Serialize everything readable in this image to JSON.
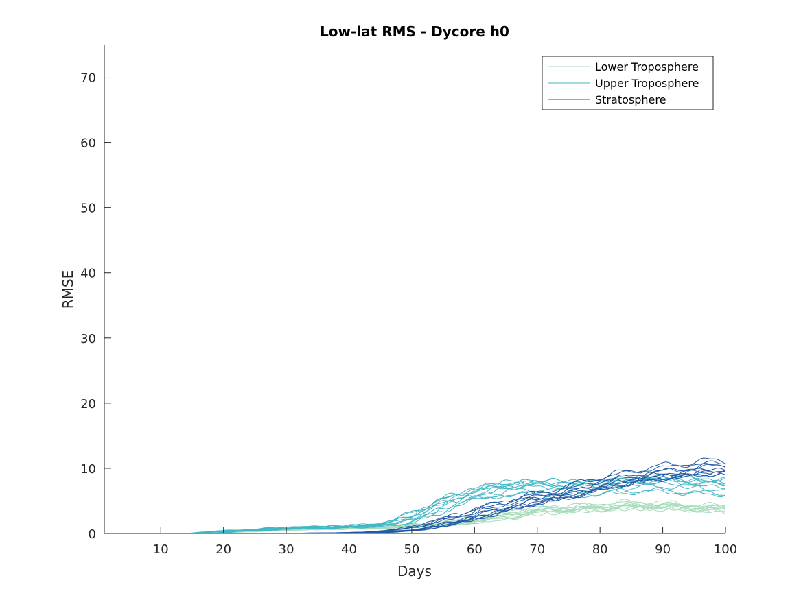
{
  "chart_data": {
    "type": "line",
    "title": "Low-lat RMS - Dycore h0",
    "xlabel": "Days",
    "ylabel": "RMSE",
    "xlim": [
      1,
      100
    ],
    "ylim": [
      0,
      75
    ],
    "xticks": [
      10,
      20,
      30,
      40,
      50,
      60,
      70,
      80,
      90,
      100
    ],
    "yticks": [
      0,
      10,
      20,
      30,
      40,
      50,
      60,
      70
    ],
    "grid": false,
    "legend_position": "top-right",
    "series": [
      {
        "name": "Lower Troposphere",
        "color": "#a6dbbb",
        "ensemble_members": 10,
        "x": [
          1,
          10,
          17,
          20,
          25,
          30,
          35,
          40,
          45,
          50,
          55,
          60,
          65,
          70,
          75,
          80,
          85,
          90,
          95,
          100
        ],
        "values": [
          0,
          0,
          0,
          0.2,
          0.4,
          0.6,
          0.7,
          0.8,
          0.9,
          1.2,
          1.5,
          2.0,
          2.8,
          3.6,
          3.8,
          4.0,
          4.4,
          4.3,
          4.0,
          3.8
        ]
      },
      {
        "name": "Upper Troposphere",
        "color": "#41b6c4",
        "ensemble_members": 10,
        "x": [
          1,
          10,
          17,
          20,
          25,
          30,
          35,
          40,
          45,
          50,
          55,
          60,
          65,
          70,
          75,
          80,
          85,
          90,
          95,
          100
        ],
        "values": [
          0,
          0,
          0,
          0.3,
          0.5,
          0.8,
          0.9,
          1.0,
          1.2,
          2.0,
          4.2,
          5.8,
          6.8,
          7.0,
          6.9,
          6.9,
          7.3,
          7.6,
          7.3,
          7.0
        ]
      },
      {
        "name": "Stratosphere",
        "color": "#2159a6",
        "ensemble_members": 10,
        "x": [
          1,
          10,
          17,
          20,
          25,
          30,
          35,
          40,
          45,
          50,
          55,
          60,
          65,
          70,
          75,
          80,
          85,
          90,
          95,
          100
        ],
        "values": [
          0,
          0,
          0,
          0,
          0,
          0,
          0.05,
          0.1,
          0.2,
          0.6,
          1.6,
          3.0,
          4.4,
          5.6,
          6.6,
          8.0,
          9.0,
          9.8,
          10.4,
          10.8
        ]
      }
    ]
  }
}
